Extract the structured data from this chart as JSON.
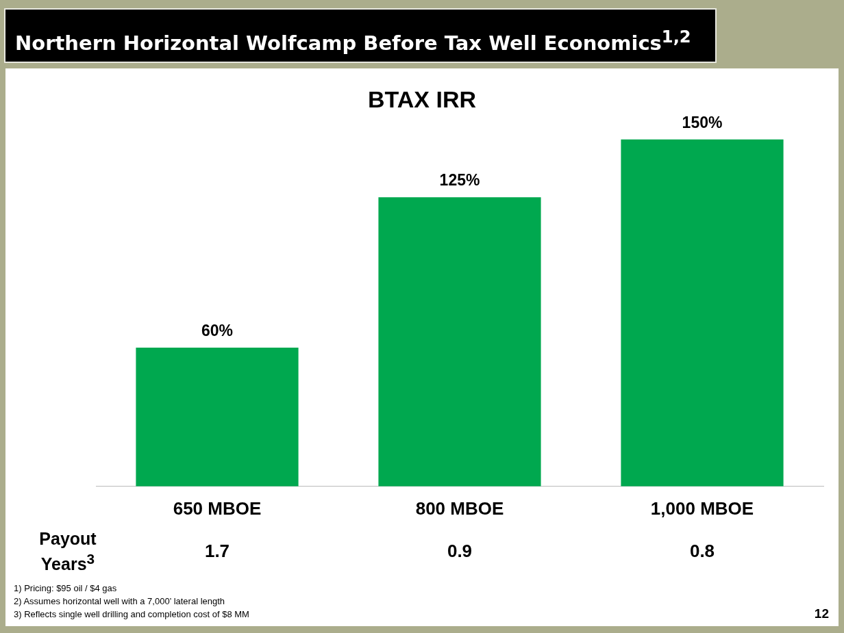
{
  "chart_data": {
    "type": "bar",
    "title": "Northern Horizontal Wolfcamp Before Tax Well Economics$^{1,2}$",
    "subtitle": "BTAX IRR",
    "categories": [
      "650 MBOE",
      "800 MBOE",
      "1,000 MBOE"
    ],
    "values": [
      60,
      125,
      150
    ],
    "color": "#00a84f",
    "data_labels": true,
    "value_labels": [
      "60%",
      "125%",
      "150%"
    ],
    "grid": false,
    "legend": false,
    "tick_labels": "x",
    "annotations": [
      "Payout Years$^{3}$",
      "1.7",
      "0.9",
      "0.8",
      "1)  Pricing: $95 oil / $4 gas",
      "2)  Assumes horizontal well with a 7,000’ lateral length",
      "3)  Reflects single well drilling and completion cost of $8 MM",
      "12"
    ]
  }
}
